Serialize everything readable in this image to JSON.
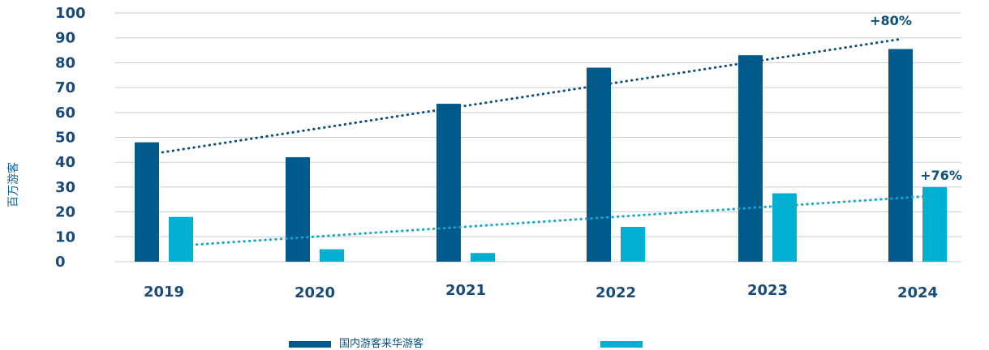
{
  "chart_data": {
    "type": "bar",
    "ylabel": "百万游客",
    "ylim": [
      0,
      100
    ],
    "yticks": [
      "0",
      "10",
      "20",
      "30",
      "40",
      "50",
      "60",
      "70",
      "80",
      "90",
      "100"
    ],
    "categories": [
      "2019",
      "2020",
      "2021",
      "2022",
      "2023",
      "2024"
    ],
    "series": [
      {
        "name": "国内游客来华游客",
        "color": "#005a8c",
        "values": [
          48,
          42,
          63.5,
          78,
          83,
          85.5
        ]
      },
      {
        "name": "",
        "color": "#00afd1",
        "values": [
          18,
          5,
          3.5,
          14,
          27.5,
          30
        ]
      }
    ],
    "trendlines": [
      {
        "series": 0,
        "color": "#0d4f7c",
        "start": 43,
        "end": 89.5
      },
      {
        "series": 1,
        "color": "#1aa6c4",
        "start": 6.5,
        "end": 26.5
      }
    ],
    "annotations": [
      {
        "text": "+80%",
        "series": 0,
        "category": "2024"
      },
      {
        "text": "+76%",
        "series": 1,
        "category": "2024"
      }
    ],
    "grid": true,
    "legend_placement": "bottom"
  }
}
